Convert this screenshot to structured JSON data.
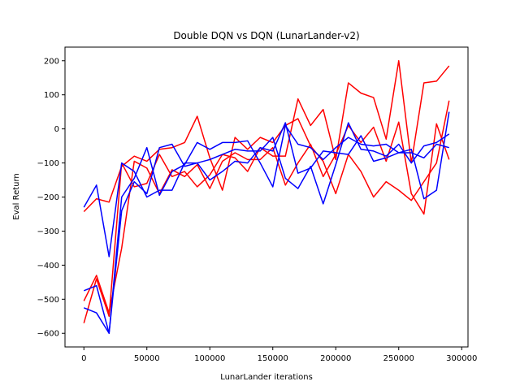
{
  "chart_data": {
    "type": "line",
    "title": "Double DQN vs DQN (LunarLander-v2)",
    "xlabel": "LunarLander iterations",
    "ylabel": "Eval Return",
    "xlim": [
      -15000,
      305000
    ],
    "ylim": [
      -640,
      240
    ],
    "xticks": [
      0,
      50000,
      100000,
      150000,
      200000,
      250000,
      300000
    ],
    "yticks": [
      -600,
      -500,
      -400,
      -300,
      -200,
      -100,
      0,
      100,
      200
    ],
    "grid": false,
    "legend": "none",
    "x": [
      0,
      10000,
      20000,
      30000,
      40000,
      50000,
      60000,
      70000,
      80000,
      90000,
      100000,
      110000,
      120000,
      130000,
      140000,
      150000,
      160000,
      170000,
      180000,
      190000,
      200000,
      210000,
      220000,
      230000,
      240000,
      250000,
      260000,
      270000,
      280000,
      290000
    ],
    "series": [
      {
        "color": "#ff0000",
        "values": [
          -243,
          -205,
          -215,
          -110,
          -80,
          -95,
          -60,
          -55,
          -40,
          37,
          -85,
          -180,
          -25,
          -60,
          -25,
          -40,
          10,
          30,
          -50,
          -95,
          -190,
          -75,
          -125,
          -200,
          -155,
          -180,
          -210,
          -155,
          -100,
          83
        ]
      },
      {
        "color": "#ff0000",
        "values": [
          -570,
          -440,
          -550,
          -100,
          -170,
          -160,
          -75,
          -140,
          -125,
          -170,
          -135,
          -75,
          -85,
          -125,
          -55,
          -80,
          -80,
          88,
          10,
          57,
          -90,
          135,
          105,
          92,
          -30,
          200,
          -100,
          135,
          140,
          185
        ]
      },
      {
        "color": "#ff0000",
        "values": [
          -505,
          -430,
          -540,
          -350,
          -95,
          -115,
          -190,
          -120,
          -140,
          -105,
          -175,
          -95,
          -70,
          -90,
          -90,
          -55,
          -165,
          -100,
          -45,
          -140,
          -75,
          10,
          -40,
          5,
          -95,
          20,
          -190,
          -250,
          15,
          -90
        ]
      },
      {
        "color": "#0000ff",
        "values": [
          -230,
          -165,
          -375,
          -100,
          -125,
          -200,
          -180,
          -180,
          -100,
          -100,
          -150,
          -125,
          -95,
          -100,
          -55,
          -65,
          18,
          -130,
          -115,
          -65,
          -70,
          -75,
          -20,
          -95,
          -85,
          -70,
          -70,
          -85,
          -45,
          -55
        ]
      },
      {
        "color": "#0000ff",
        "values": [
          -475,
          -460,
          -600,
          -200,
          -145,
          -55,
          -195,
          -125,
          -105,
          -40,
          -60,
          -40,
          -40,
          -35,
          -100,
          -170,
          10,
          -45,
          -55,
          -90,
          -55,
          -25,
          -45,
          -50,
          -45,
          -70,
          -60,
          -205,
          -180,
          50
        ]
      },
      {
        "color": "#0000ff",
        "values": [
          -525,
          -540,
          -600,
          -240,
          -155,
          -190,
          -55,
          -45,
          -110,
          -100,
          -90,
          -75,
          -60,
          -65,
          -65,
          -25,
          -145,
          -175,
          -110,
          -220,
          -105,
          18,
          -60,
          -65,
          -80,
          -45,
          -100,
          -50,
          -40,
          -15
        ]
      }
    ]
  }
}
